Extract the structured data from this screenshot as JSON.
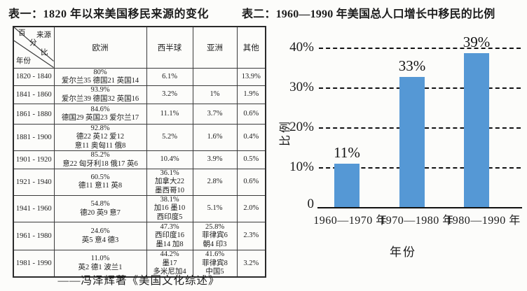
{
  "colors": {
    "bar": "#5598d5",
    "ink": "#1c1c1c"
  },
  "table1": {
    "title": "表一：1820 年以来美国移民来源的变化",
    "corner": {
      "percent_chars": [
        "百",
        "分",
        "比"
      ],
      "source": "来源",
      "year": "年份"
    },
    "columns": [
      "欧洲",
      "西半球",
      "亚洲",
      "其他"
    ],
    "rows": [
      {
        "year": "1820 - 1840",
        "europe": "80%\n爱尔兰35 德国21 英国14",
        "west": "6.1%",
        "asia": "",
        "other": "13.9%"
      },
      {
        "year": "1841 - 1860",
        "europe": "93.9%\n爱尔兰39 德国32 英国16",
        "west": "3.2%",
        "asia": "1%",
        "other": "1.9%"
      },
      {
        "year": "1861 - 1880",
        "europe": "84.6%\n德国29 英国23 爱尔兰17",
        "west": "11.1%",
        "asia": "3.7%",
        "other": "0.6%"
      },
      {
        "year": "1881 - 1900",
        "europe": "92.8%\n德22 英12 爱12\n意11 奥匈11 俄8",
        "west": "5.2%",
        "asia": "1.6%",
        "other": "0.4%"
      },
      {
        "year": "1901 - 1920",
        "europe": "85.2%\n意22 匈牙利18 俄17 英6",
        "west": "10.4%",
        "asia": "3.9%",
        "other": "0.5%"
      },
      {
        "year": "1921 - 1940",
        "europe": "60.5%\n德11 意11 英8",
        "west": "36.1%\n加拿大22\n墨西哥10",
        "asia": "2.8%",
        "other": "0.6%"
      },
      {
        "year": "1941 - 1960",
        "europe": "54.8%\n德20 英9 意7",
        "west": "38.1%\n加16 墨10\n西印度5",
        "asia": "5.1%",
        "other": "2.0%"
      },
      {
        "year": "1961 - 1980",
        "europe": "24.6%\n英5 意4 德3",
        "west": "47.3%\n西印度16\n墨14 加8",
        "asia": "25.8%\n菲律宾6\n朝4 印3",
        "other": "2.3%"
      },
      {
        "year": "1981 - 1990",
        "europe": "11.0%\n英2 德1 波兰1",
        "west": "44.2%\n墨17\n多米尼加4",
        "asia": "41.6%\n菲律宾8\n中国5",
        "other": "3.2%"
      }
    ],
    "caption": "——冯泽辉著《美国文化综述》"
  },
  "chart_data": {
    "type": "bar",
    "title": "表二：1960—1990 年美国总人口增长中移民的比例",
    "categories": [
      "1960—1970 年",
      "1970—1980 年",
      "1980—1990 年"
    ],
    "values": [
      11,
      33,
      39
    ],
    "bar_labels": [
      "11%",
      "33%",
      "39%"
    ],
    "yticks": [
      "40%",
      "30%",
      "20%",
      "10%",
      "0"
    ],
    "xlabel": "年份",
    "ylabel": "比例",
    "ylim": [
      0,
      41.5
    ],
    "grid": "horizontal-dashed",
    "legend": "none"
  }
}
